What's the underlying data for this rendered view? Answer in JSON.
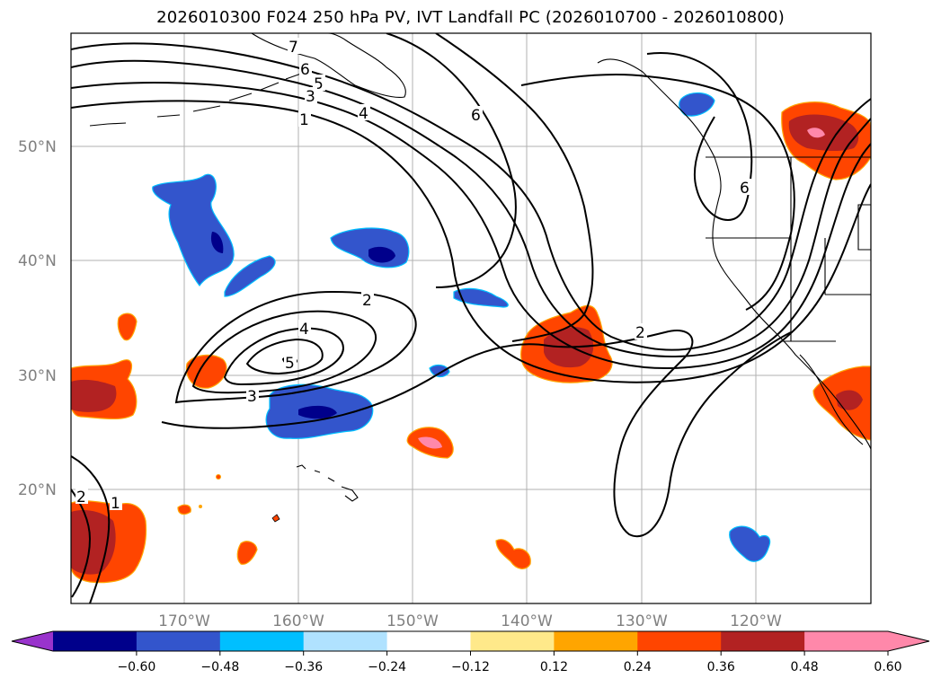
{
  "title": "2026010300 F024 250 hPa PV, IVT Landfall PC (2026010700 - 2026010800)",
  "map": {
    "lat_labels": [
      "50°N",
      "40°N",
      "30°N",
      "20°N"
    ],
    "lon_labels": [
      "170°W",
      "160°W",
      "150°W",
      "140°W",
      "130°W",
      "120°W"
    ],
    "contour_labels": [
      {
        "text": "7"
      },
      {
        "text": "6"
      },
      {
        "text": "5"
      },
      {
        "text": "3"
      },
      {
        "text": "1"
      },
      {
        "text": "4"
      },
      {
        "text": "6"
      },
      {
        "text": "6"
      },
      {
        "text": "2"
      },
      {
        "text": "4"
      },
      {
        "text": "5"
      },
      {
        "text": "3"
      },
      {
        "text": "2"
      },
      {
        "text": "2"
      },
      {
        "text": "1"
      }
    ]
  },
  "colorbar": {
    "tick_labels": [
      "−0.60",
      "−0.48",
      "−0.36",
      "−0.24",
      "−0.12",
      "0.12",
      "0.24",
      "0.36",
      "0.48",
      "0.60"
    ],
    "colors": [
      "#9933cc",
      "#00008b",
      "#3355cc",
      "#00bfff",
      "#b0e2ff",
      "#ffffff",
      "#ffe98a",
      "#ffa500",
      "#ff4500",
      "#b22222",
      "#ff88aa",
      "#ff88aa"
    ]
  }
}
